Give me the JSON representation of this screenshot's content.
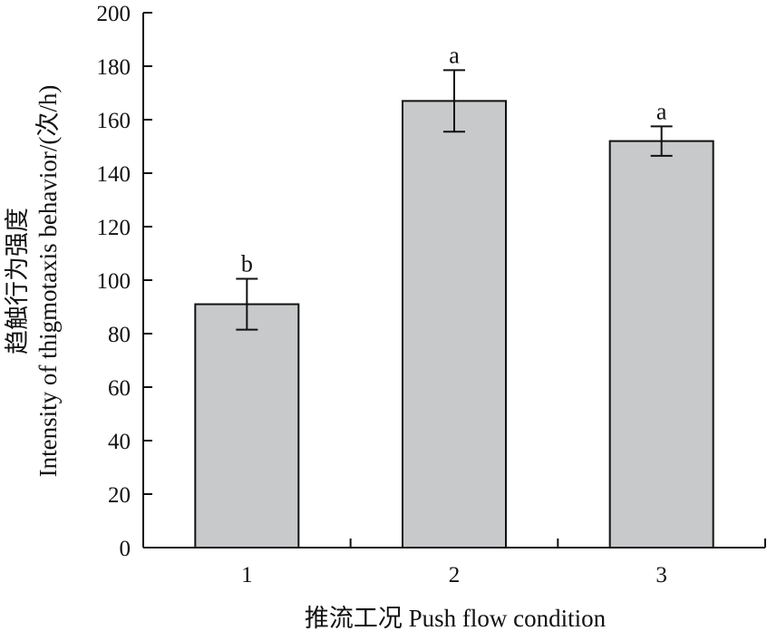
{
  "chart_data": {
    "type": "bar",
    "categories": [
      "1",
      "2",
      "3"
    ],
    "values": [
      91,
      167,
      152
    ],
    "errors": [
      9.5,
      11.5,
      5.5
    ],
    "significance": [
      "b",
      "a",
      "a"
    ],
    "xlabel": "推流工况 Push flow condition",
    "ylabel": "趋触行为强度 Intensity of thigmotaxis behavior/(次/h)",
    "ylabel_cn": "趋触行为强度",
    "ylabel_en": "Intensity of thigmotaxis behavior/(次/h)",
    "ylim": [
      0,
      200
    ],
    "yticks": [
      0,
      20,
      40,
      60,
      80,
      100,
      120,
      140,
      160,
      180,
      200
    ],
    "grid": false,
    "legend": "none",
    "bar_color": "#c8c9cb",
    "edge_color": "#111111"
  }
}
